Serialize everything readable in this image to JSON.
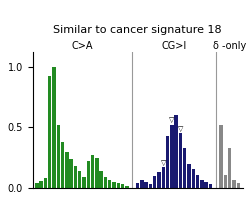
{
  "chart_data": {
    "type": "bar",
    "title": "Similar to cancer signature 18",
    "series": [
      {
        "name": "C>A",
        "color": "#228B22",
        "values": [
          0.04,
          0.06,
          0.08,
          0.92,
          1.0,
          0.52,
          0.38,
          0.3,
          0.24,
          0.18,
          0.14,
          0.09,
          0.22,
          0.27,
          0.25,
          0.14,
          0.09,
          0.07,
          0.05,
          0.04,
          0.03,
          0.02
        ]
      },
      {
        "name": "CG>I",
        "color": "#191970",
        "values": [
          0.04,
          0.07,
          0.05,
          0.03,
          0.1,
          0.13,
          0.17,
          0.43,
          0.52,
          0.6,
          0.45,
          0.33,
          0.2,
          0.16,
          0.11,
          0.07,
          0.05,
          0.03
        ]
      },
      {
        "name": "δ -only",
        "color": "#888888",
        "values": [
          0.52,
          0.11,
          0.33,
          0.07,
          0.04
        ]
      }
    ],
    "annotations": [
      {
        "text": "▽",
        "series": "CG>I",
        "index": 6
      },
      {
        "text": "▽",
        "series": "CG>I",
        "index": 8
      },
      {
        "text": "▽",
        "series": "CG>I",
        "index": 10
      }
    ],
    "ylim": [
      0,
      1.12
    ],
    "yticks": [
      {
        "value": 0.0,
        "label": "0.0"
      },
      {
        "value": 0.5,
        "label": "0.5"
      },
      {
        "value": 1.0,
        "label": "1.0"
      }
    ],
    "tick_labels": "y"
  }
}
